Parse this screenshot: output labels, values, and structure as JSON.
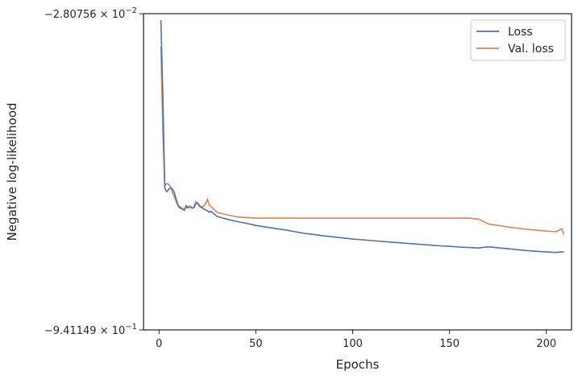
{
  "chart_data": {
    "type": "line",
    "title": "",
    "xlabel": "Epochs",
    "ylabel": "Negative log-likelihood",
    "y_scale": "log",
    "xlim": [
      -8,
      213
    ],
    "ylim": [
      -0.0280756,
      -0.941149
    ],
    "x_ticks": [
      0,
      50,
      100,
      150,
      200
    ],
    "y_tick_labels": {
      "top": {
        "base": "−2.80756",
        "exp": "−2"
      },
      "bottom": {
        "base": "−9.41149",
        "exp": "−1"
      }
    },
    "grid": false,
    "legend_position": "top-right",
    "series": [
      {
        "name": "Loss",
        "color": "#4c72b0",
        "x": [
          1,
          2,
          3,
          4,
          5,
          6,
          7,
          8,
          9,
          10,
          11,
          12,
          13,
          14,
          15,
          16,
          17,
          18,
          19,
          20,
          21,
          22,
          23,
          24,
          25,
          26,
          27,
          28,
          29,
          30,
          35,
          40,
          45,
          50,
          55,
          60,
          65,
          70,
          75,
          80,
          85,
          90,
          95,
          100,
          105,
          110,
          115,
          120,
          125,
          130,
          135,
          140,
          145,
          150,
          155,
          160,
          165,
          170,
          175,
          180,
          185,
          190,
          195,
          200,
          205,
          208,
          209
        ],
        "y": [
          -0.0302,
          -0.07,
          -0.195,
          -0.203,
          -0.198,
          -0.194,
          -0.197,
          -0.205,
          -0.222,
          -0.238,
          -0.244,
          -0.246,
          -0.249,
          -0.24,
          -0.243,
          -0.238,
          -0.243,
          -0.242,
          -0.232,
          -0.23,
          -0.237,
          -0.242,
          -0.245,
          -0.248,
          -0.25,
          -0.255,
          -0.252,
          -0.258,
          -0.262,
          -0.267,
          -0.275,
          -0.282,
          -0.288,
          -0.295,
          -0.3,
          -0.305,
          -0.31,
          -0.316,
          -0.322,
          -0.326,
          -0.331,
          -0.335,
          -0.339,
          -0.343,
          -0.346,
          -0.349,
          -0.352,
          -0.355,
          -0.358,
          -0.361,
          -0.364,
          -0.367,
          -0.37,
          -0.372,
          -0.375,
          -0.377,
          -0.379,
          -0.374,
          -0.378,
          -0.382,
          -0.386,
          -0.39,
          -0.393,
          -0.396,
          -0.398,
          -0.395,
          -0.396
        ]
      },
      {
        "name": "Val. loss",
        "color": "#dd8452",
        "x": [
          1,
          2,
          3,
          4,
          5,
          6,
          7,
          8,
          9,
          10,
          11,
          12,
          13,
          14,
          15,
          16,
          17,
          18,
          19,
          20,
          21,
          22,
          23,
          24,
          25,
          26,
          27,
          28,
          29,
          30,
          35,
          40,
          45,
          50,
          55,
          60,
          65,
          70,
          75,
          80,
          85,
          90,
          95,
          100,
          105,
          110,
          115,
          120,
          125,
          130,
          135,
          140,
          145,
          150,
          155,
          160,
          165,
          170,
          175,
          180,
          185,
          190,
          195,
          200,
          205,
          208,
          209
        ],
        "y": [
          -0.0405,
          -0.105,
          -0.19,
          -0.185,
          -0.187,
          -0.192,
          -0.205,
          -0.215,
          -0.228,
          -0.236,
          -0.24,
          -0.244,
          -0.248,
          -0.236,
          -0.24,
          -0.238,
          -0.244,
          -0.24,
          -0.226,
          -0.232,
          -0.24,
          -0.24,
          -0.238,
          -0.232,
          -0.22,
          -0.235,
          -0.24,
          -0.245,
          -0.25,
          -0.255,
          -0.262,
          -0.268,
          -0.27,
          -0.272,
          -0.272,
          -0.272,
          -0.272,
          -0.272,
          -0.272,
          -0.272,
          -0.272,
          -0.272,
          -0.272,
          -0.272,
          -0.272,
          -0.272,
          -0.272,
          -0.272,
          -0.272,
          -0.272,
          -0.272,
          -0.272,
          -0.272,
          -0.272,
          -0.272,
          -0.272,
          -0.275,
          -0.29,
          -0.295,
          -0.3,
          -0.304,
          -0.308,
          -0.311,
          -0.314,
          -0.316,
          -0.306,
          -0.325
        ]
      }
    ]
  }
}
